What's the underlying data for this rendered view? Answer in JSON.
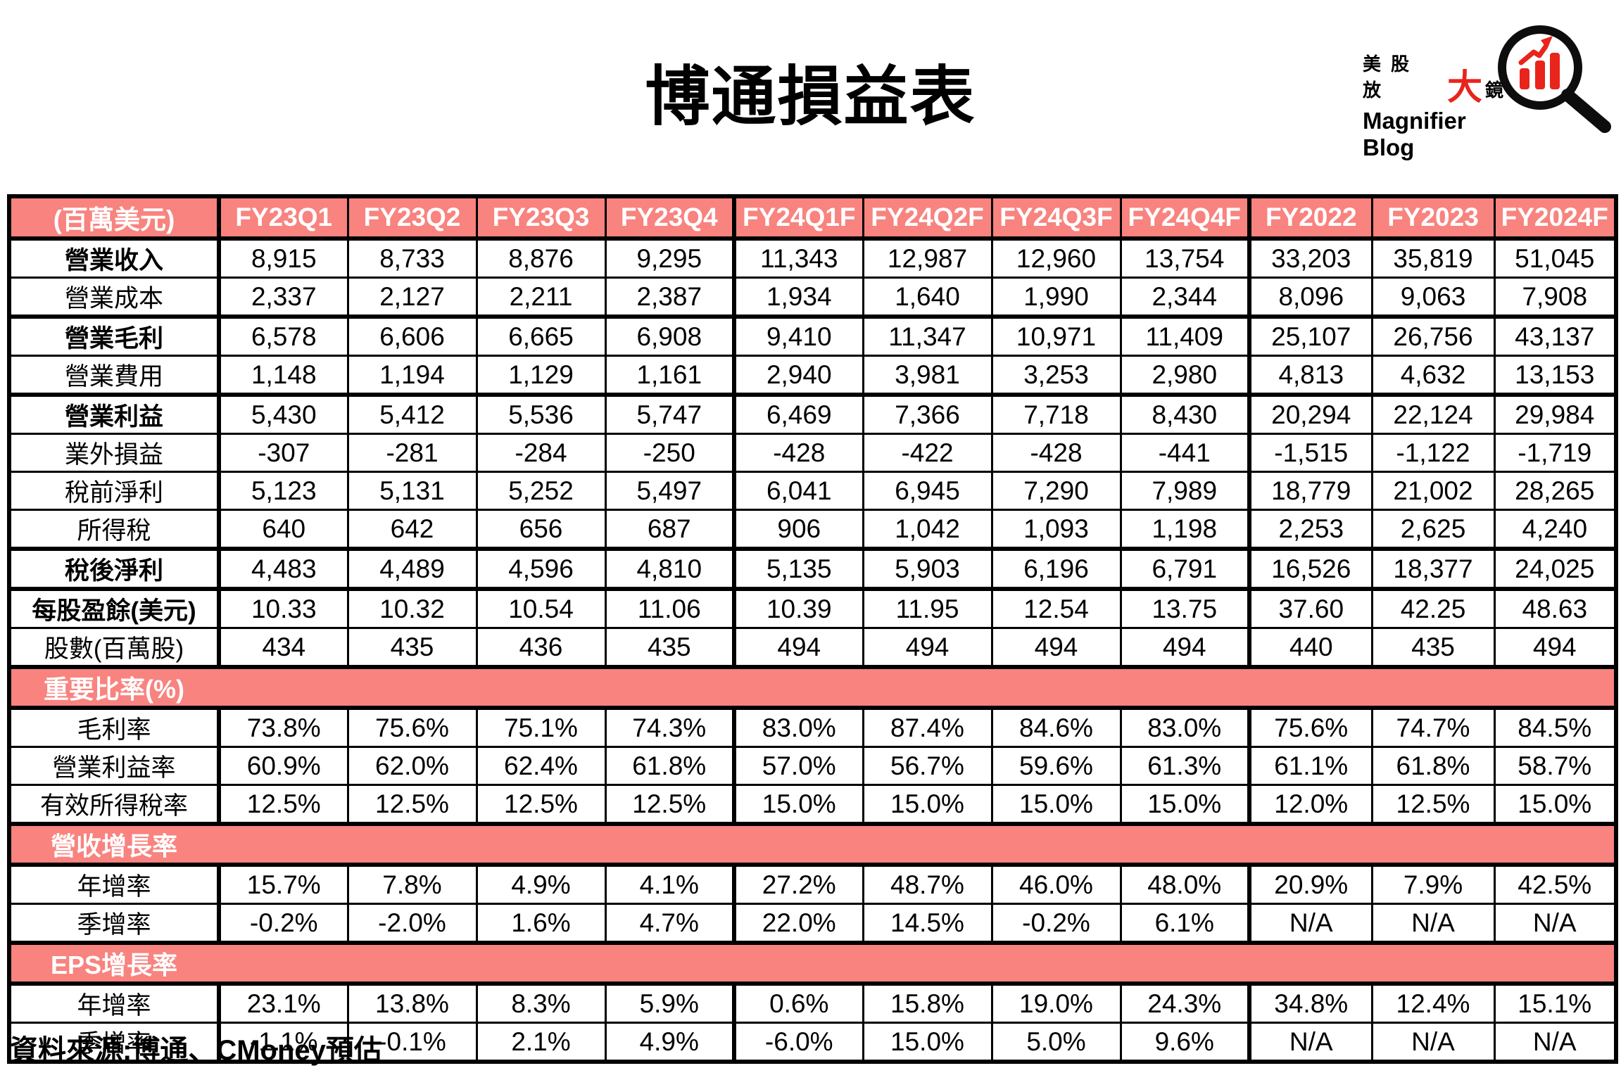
{
  "colors": {
    "header_pink": "#F8837F",
    "logo_red": "#E8241C",
    "border_black": "#000000",
    "header_text": "#FFFFFF"
  },
  "logo": {
    "line1_prefix": "美股放",
    "line1_big": "大",
    "line1_suffix": "鏡",
    "line2": "Magnifier Blog"
  },
  "footer": {
    "source": "資料來源:博通、CMoney預估"
  },
  "chart_data": {
    "type": "table",
    "title": "博通損益表",
    "unit_label": "(百萬美元)",
    "columns": [
      "FY23Q1",
      "FY23Q2",
      "FY23Q3",
      "FY23Q4",
      "FY24Q1F",
      "FY24Q2F",
      "FY24Q3F",
      "FY24Q4F",
      "FY2022",
      "FY2023",
      "FY2024F"
    ],
    "rows": [
      {
        "kind": "data",
        "label": "營業收入",
        "bold": true,
        "values": [
          "8,915",
          "8,733",
          "8,876",
          "9,295",
          "11,343",
          "12,987",
          "12,960",
          "13,754",
          "33,203",
          "35,819",
          "51,045"
        ]
      },
      {
        "kind": "data",
        "label": "營業成本",
        "bold": false,
        "values": [
          "2,337",
          "2,127",
          "2,211",
          "2,387",
          "1,934",
          "1,640",
          "1,990",
          "2,344",
          "8,096",
          "9,063",
          "7,908"
        ]
      },
      {
        "kind": "data",
        "label": "營業毛利",
        "bold": true,
        "values": [
          "6,578",
          "6,606",
          "6,665",
          "6,908",
          "9,410",
          "11,347",
          "10,971",
          "11,409",
          "25,107",
          "26,756",
          "43,137"
        ]
      },
      {
        "kind": "data",
        "label": "營業費用",
        "bold": false,
        "values": [
          "1,148",
          "1,194",
          "1,129",
          "1,161",
          "2,940",
          "3,981",
          "3,253",
          "2,980",
          "4,813",
          "4,632",
          "13,153"
        ]
      },
      {
        "kind": "data",
        "label": "營業利益",
        "bold": true,
        "values": [
          "5,430",
          "5,412",
          "5,536",
          "5,747",
          "6,469",
          "7,366",
          "7,718",
          "8,430",
          "20,294",
          "22,124",
          "29,984"
        ]
      },
      {
        "kind": "data",
        "label": "業外損益",
        "bold": false,
        "values": [
          "-307",
          "-281",
          "-284",
          "-250",
          "-428",
          "-422",
          "-428",
          "-441",
          "-1,515",
          "-1,122",
          "-1,719"
        ]
      },
      {
        "kind": "data",
        "label": "稅前淨利",
        "bold": false,
        "values": [
          "5,123",
          "5,131",
          "5,252",
          "5,497",
          "6,041",
          "6,945",
          "7,290",
          "7,989",
          "18,779",
          "21,002",
          "28,265"
        ]
      },
      {
        "kind": "data",
        "label": "所得稅",
        "bold": false,
        "values": [
          "640",
          "642",
          "656",
          "687",
          "906",
          "1,042",
          "1,093",
          "1,198",
          "2,253",
          "2,625",
          "4,240"
        ]
      },
      {
        "kind": "data",
        "label": "稅後淨利",
        "bold": true,
        "values": [
          "4,483",
          "4,489",
          "4,596",
          "4,810",
          "5,135",
          "5,903",
          "6,196",
          "6,791",
          "16,526",
          "18,377",
          "24,025"
        ]
      },
      {
        "kind": "data",
        "label": "每股盈餘(美元)",
        "bold": true,
        "values": [
          "10.33",
          "10.32",
          "10.54",
          "11.06",
          "10.39",
          "11.95",
          "12.54",
          "13.75",
          "37.60",
          "42.25",
          "48.63"
        ]
      },
      {
        "kind": "data",
        "label": "股數(百萬股)",
        "bold": false,
        "values": [
          "434",
          "435",
          "436",
          "435",
          "494",
          "494",
          "494",
          "494",
          "440",
          "435",
          "494"
        ]
      },
      {
        "kind": "section",
        "label": "重要比率(%)"
      },
      {
        "kind": "data",
        "label": "毛利率",
        "bold": false,
        "values": [
          "73.8%",
          "75.6%",
          "75.1%",
          "74.3%",
          "83.0%",
          "87.4%",
          "84.6%",
          "83.0%",
          "75.6%",
          "74.7%",
          "84.5%"
        ]
      },
      {
        "kind": "data",
        "label": "營業利益率",
        "bold": false,
        "values": [
          "60.9%",
          "62.0%",
          "62.4%",
          "61.8%",
          "57.0%",
          "56.7%",
          "59.6%",
          "61.3%",
          "61.1%",
          "61.8%",
          "58.7%"
        ]
      },
      {
        "kind": "data",
        "label": "有效所得稅率",
        "bold": false,
        "values": [
          "12.5%",
          "12.5%",
          "12.5%",
          "12.5%",
          "15.0%",
          "15.0%",
          "15.0%",
          "15.0%",
          "12.0%",
          "12.5%",
          "15.0%"
        ]
      },
      {
        "kind": "section",
        "label": "營收增長率"
      },
      {
        "kind": "data",
        "label": "年增率",
        "bold": false,
        "values": [
          "15.7%",
          "7.8%",
          "4.9%",
          "4.1%",
          "27.2%",
          "48.7%",
          "46.0%",
          "48.0%",
          "20.9%",
          "7.9%",
          "42.5%"
        ]
      },
      {
        "kind": "data",
        "label": "季增率",
        "bold": false,
        "values": [
          "-0.2%",
          "-2.0%",
          "1.6%",
          "4.7%",
          "22.0%",
          "14.5%",
          "-0.2%",
          "6.1%",
          "N/A",
          "N/A",
          "N/A"
        ]
      },
      {
        "kind": "section",
        "label": "EPS增長率"
      },
      {
        "kind": "data",
        "label": "年增率",
        "bold": false,
        "values": [
          "23.1%",
          "13.8%",
          "8.3%",
          "5.9%",
          "0.6%",
          "15.8%",
          "19.0%",
          "24.3%",
          "34.8%",
          "12.4%",
          "15.1%"
        ]
      },
      {
        "kind": "data",
        "label": "季增率",
        "bold": false,
        "values": [
          "-1.1%",
          "-0.1%",
          "2.1%",
          "4.9%",
          "-6.0%",
          "15.0%",
          "5.0%",
          "9.6%",
          "N/A",
          "N/A",
          "N/A"
        ]
      }
    ]
  }
}
